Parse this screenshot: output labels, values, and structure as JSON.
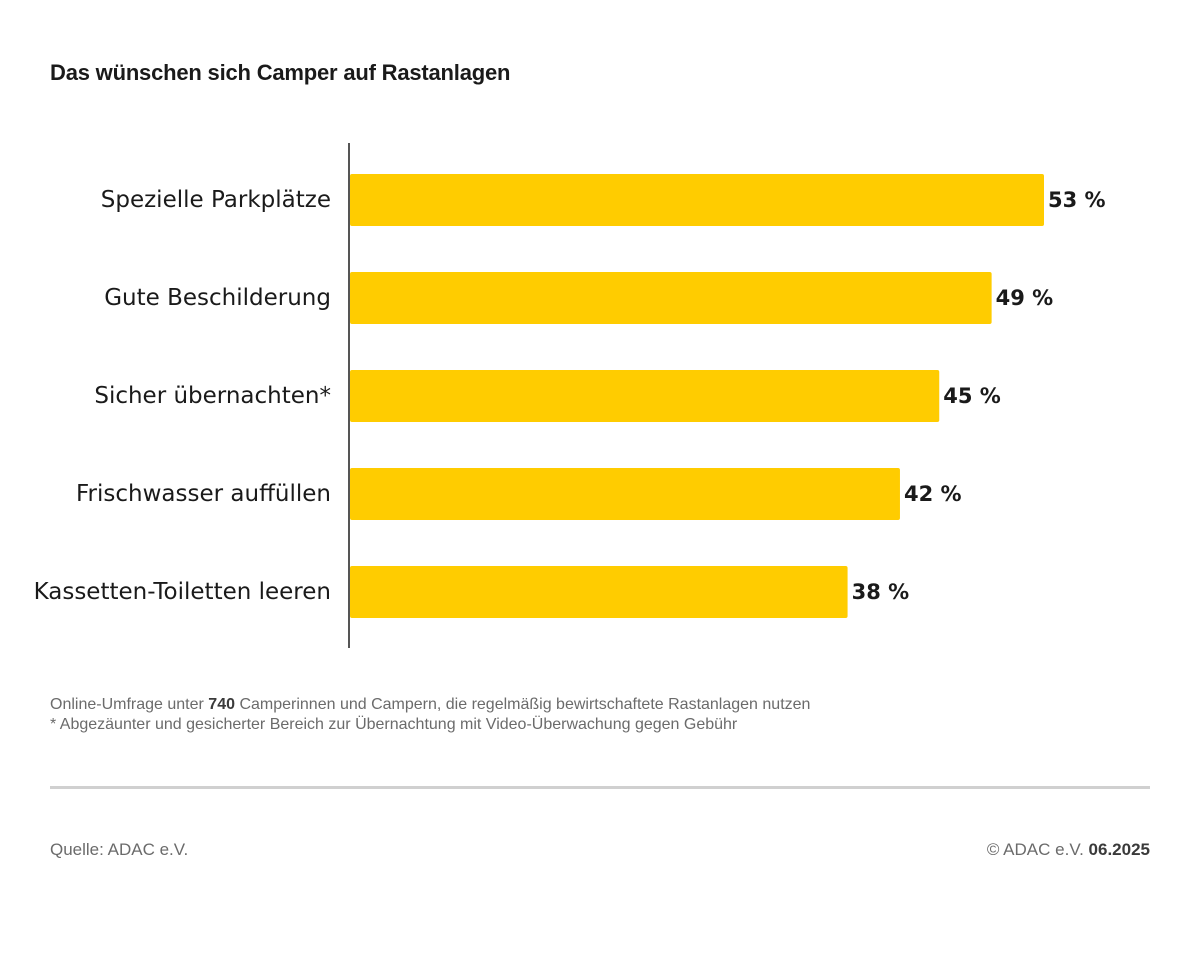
{
  "chart_data": {
    "type": "bar",
    "orientation": "horizontal",
    "title": "Das wünschen sich Camper auf Rastanlagen",
    "categories": [
      "Spezielle Parkplätze",
      "Gute Beschilderung",
      "Sicher übernachten*",
      "Frischwasser auffüllen",
      "Kassetten-Toiletten leeren"
    ],
    "values": [
      53,
      49,
      45,
      42,
      38
    ],
    "value_labels": [
      "53 %",
      "49 %",
      "45 %",
      "42 %",
      "38 %"
    ],
    "xlim": [
      0,
      53
    ],
    "bar_color": "#FFCC00",
    "grid": false
  },
  "notes": {
    "line1_prefix": "Online-Umfrage unter ",
    "line1_number": "740",
    "line1_suffix": " Camperinnen und Campern, die regelmäßig bewirtschaftete Rastanlagen nutzen",
    "line2": "* Abgezäunter und gesicherter Bereich zur Übernachtung mit Video-Überwachung gegen Gebühr"
  },
  "footer": {
    "source": "Quelle: ADAC e.V.",
    "copyright": "© ADAC e.V. ",
    "date": "06.2025"
  }
}
